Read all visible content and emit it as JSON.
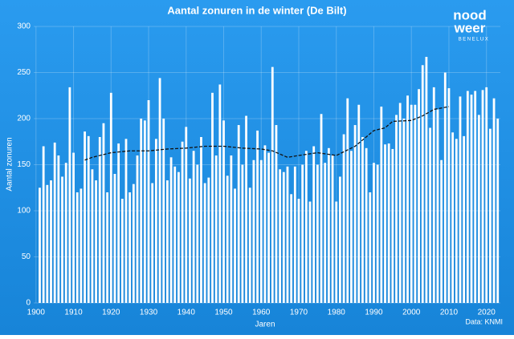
{
  "chart_data": {
    "type": "bar",
    "title": "Aantal zonuren in de winter (De Bilt)",
    "x_label": "Jaren",
    "y_label": "Aantal zonuren",
    "source": "Data: KNMI",
    "logo": {
      "top": "nood",
      "middle": "weer",
      "bottom": "BENELUX"
    },
    "color": "#ffffff",
    "x": [
      1901,
      1902,
      1903,
      1904,
      1905,
      1906,
      1907,
      1908,
      1909,
      1910,
      1911,
      1912,
      1913,
      1914,
      1915,
      1916,
      1917,
      1918,
      1919,
      1920,
      1921,
      1922,
      1923,
      1924,
      1925,
      1926,
      1927,
      1928,
      1929,
      1930,
      1931,
      1932,
      1933,
      1934,
      1935,
      1936,
      1937,
      1938,
      1939,
      1940,
      1941,
      1942,
      1943,
      1944,
      1945,
      1946,
      1947,
      1948,
      1949,
      1950,
      1951,
      1952,
      1953,
      1954,
      1955,
      1956,
      1957,
      1958,
      1959,
      1960,
      1961,
      1962,
      1963,
      1964,
      1965,
      1966,
      1967,
      1968,
      1969,
      1970,
      1971,
      1972,
      1973,
      1974,
      1975,
      1976,
      1977,
      1978,
      1979,
      1980,
      1981,
      1982,
      1983,
      1984,
      1985,
      1986,
      1987,
      1988,
      1989,
      1990,
      1991,
      1992,
      1993,
      1994,
      1995,
      1996,
      1997,
      1998,
      1999,
      2000,
      2001,
      2002,
      2003,
      2004,
      2005,
      2006,
      2007,
      2008,
      2009,
      2010,
      2011,
      2012,
      2013,
      2014,
      2015,
      2016,
      2017,
      2018,
      2019,
      2020,
      2021,
      2022,
      2023
    ],
    "values": [
      125,
      170,
      128,
      133,
      174,
      160,
      137,
      152,
      234,
      163,
      120,
      124,
      186,
      181,
      145,
      133,
      180,
      195,
      120,
      228,
      140,
      173,
      113,
      178,
      120,
      129,
      160,
      200,
      198,
      220,
      130,
      178,
      244,
      200,
      133,
      158,
      148,
      142,
      175,
      191,
      135,
      165,
      150,
      180,
      130,
      136,
      228,
      160,
      237,
      198,
      138,
      160,
      124,
      193,
      150,
      203,
      125,
      155,
      187,
      155,
      171,
      163,
      256,
      193,
      145,
      142,
      148,
      118,
      148,
      113,
      150,
      165,
      110,
      170,
      150,
      205,
      152,
      168,
      160,
      110,
      137,
      183,
      222,
      165,
      193,
      215,
      180,
      168,
      120,
      152,
      150,
      213,
      172,
      173,
      167,
      204,
      217,
      200,
      225,
      215,
      215,
      232,
      258,
      267,
      190,
      234,
      210,
      155,
      250,
      233,
      185,
      178,
      224,
      181,
      230,
      226,
      230,
      204,
      231,
      234,
      189,
      222,
      200
    ],
    "trend": {
      "color": "#111111",
      "x": [
        1913,
        1915,
        1920,
        1925,
        1930,
        1935,
        1940,
        1945,
        1950,
        1955,
        1960,
        1963,
        1967,
        1970,
        1975,
        1980,
        1985,
        1990,
        1993,
        1995,
        2000,
        2003,
        2006,
        2010
      ],
      "values": [
        155,
        158,
        163,
        165,
        165,
        167,
        168,
        170,
        170,
        168,
        167,
        165,
        158,
        160,
        163,
        160,
        170,
        187,
        190,
        197,
        198,
        203,
        210,
        213
      ]
    },
    "xlim": [
      1899.4,
      2023.7
    ],
    "xticks": [
      1900,
      1910,
      1920,
      1930,
      1940,
      1950,
      1960,
      1970,
      1980,
      1990,
      2000,
      2010,
      2020
    ],
    "ylim": [
      0,
      300
    ],
    "yticks": [
      0,
      50,
      100,
      150,
      200,
      250,
      300
    ],
    "grid": true
  }
}
